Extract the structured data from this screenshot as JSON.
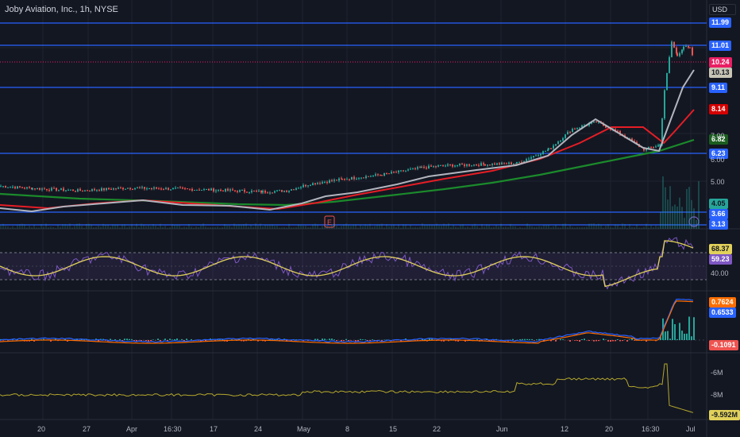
{
  "title": "Joby Aviation, Inc., 1h, NYSE",
  "currency": "USD",
  "colors": {
    "bg": "#131722",
    "grid": "#1f2330",
    "hline": "#2962ff",
    "ema_gray": "#b2b5be",
    "ma_red": "#e61d25",
    "ma_green": "#1b8a2b",
    "rsi": "#7e57c2",
    "rsi_ma": "#e1d15a",
    "macd_blue": "#2962ff",
    "macd_orange": "#ff6d00",
    "obv": "#b5a82c"
  },
  "price_levels": [
    {
      "value": "11.99",
      "bg": "#2962ff",
      "fg": "#ffffff"
    },
    {
      "value": "11.01",
      "bg": "#2962ff",
      "fg": "#ffffff"
    },
    {
      "value": "10.24",
      "bg": "#e91e63",
      "fg": "#ffffff"
    },
    {
      "value": "10.13",
      "bg": "#c8c5b5",
      "fg": "#131722"
    },
    {
      "value": "9.11",
      "bg": "#2962ff",
      "fg": "#ffffff"
    },
    {
      "value": "8.14",
      "bg": "#d50000",
      "fg": "#ffffff"
    },
    {
      "value": "6.82",
      "bg": "#1b5e20",
      "fg": "#ffffff"
    },
    {
      "value": "6.23",
      "bg": "#2962ff",
      "fg": "#ffffff"
    },
    {
      "value": "4.05",
      "bg": "#26a69a",
      "fg": "#131722"
    },
    {
      "value": "3.66",
      "bg": "#2962ff",
      "fg": "#ffffff"
    },
    {
      "value": "3.13",
      "bg": "#2962ff",
      "fg": "#ffffff"
    }
  ],
  "axis_ticks": {
    "price": [
      "7.00",
      "6.00",
      "5.00"
    ],
    "rsi": [
      "68.37",
      "59.23",
      "40.00"
    ],
    "macd": [
      "0.7624",
      "0.6533",
      "-0.1091"
    ],
    "obv": [
      "-6M",
      "-8M",
      "-9.592M"
    ]
  },
  "rsi_labels": [
    {
      "value": "68.37",
      "bg": "#e1d15a",
      "fg": "#131722"
    },
    {
      "value": "59.23",
      "bg": "#7e57c2",
      "fg": "#ffffff"
    }
  ],
  "macd_labels": [
    {
      "value": "0.7624",
      "bg": "#ff6d00",
      "fg": "#ffffff"
    },
    {
      "value": "0.6533",
      "bg": "#2962ff",
      "fg": "#ffffff"
    },
    {
      "value": "-0.1091",
      "bg": "#ef5350",
      "fg": "#ffffff"
    }
  ],
  "obv_label": {
    "value": "-9.592M",
    "bg": "#e1d15a",
    "fg": "#131722"
  },
  "x_axis": [
    "20",
    "27",
    "Apr",
    "16:30",
    "17",
    "24",
    "May",
    "8",
    "15",
    "22",
    "Jun",
    "12",
    "20",
    "16:30",
    "Jul"
  ],
  "earnings_marker": "E"
}
